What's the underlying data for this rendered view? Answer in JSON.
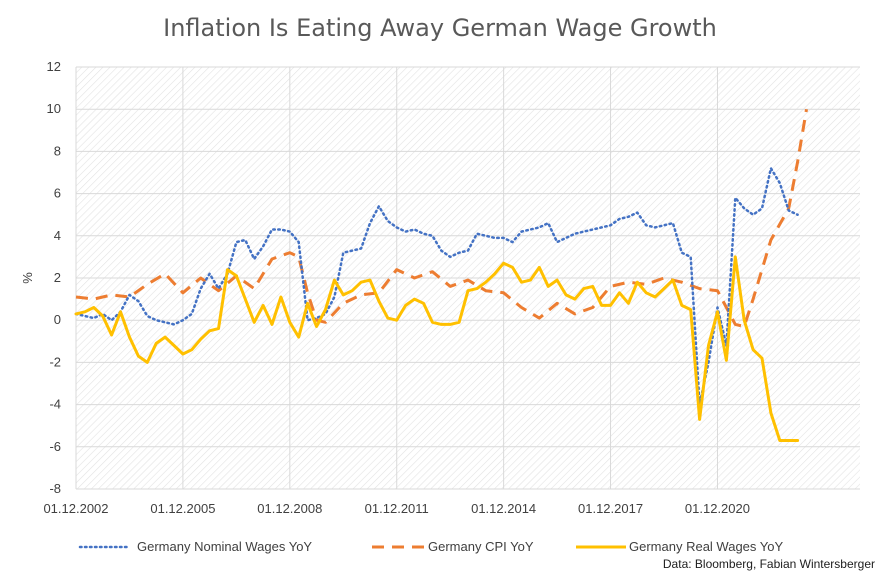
{
  "chart_data": {
    "type": "line",
    "title": "Inflation Is Eating Away German Wage Growth",
    "ylabel": "%",
    "xlabel": "",
    "ylim": [
      -8,
      12
    ],
    "yticks": [
      12,
      10,
      8,
      6,
      4,
      2,
      0,
      -2,
      -4,
      -6,
      -8
    ],
    "x_tick_labels": [
      "01.12.2002",
      "01.12.2005",
      "01.12.2008",
      "01.12.2011",
      "01.12.2014",
      "01.12.2017",
      "01.12.2020"
    ],
    "x_tick_years": [
      2002,
      2005,
      2008,
      2011,
      2014,
      2017,
      2020
    ],
    "xlim": [
      2002.0,
      2024.0
    ],
    "grid": true,
    "legend_position": "bottom",
    "source": "Data: Bloomberg, Fabian Wintersberger",
    "colors": {
      "nominal": "#4472C4",
      "cpi": "#ED7D31",
      "real": "#FFC000",
      "grid": "#d9d9d9",
      "text": "#404040"
    },
    "series": [
      {
        "name": "Germany Nominal Wages YoY",
        "style": "dotted",
        "x": [
          2002.0,
          2002.25,
          2002.5,
          2002.75,
          2003.0,
          2003.25,
          2003.5,
          2003.75,
          2004.0,
          2004.25,
          2004.5,
          2004.75,
          2005.0,
          2005.25,
          2005.5,
          2005.75,
          2006.0,
          2006.25,
          2006.5,
          2006.75,
          2007.0,
          2007.25,
          2007.5,
          2007.75,
          2008.0,
          2008.25,
          2008.5,
          2008.75,
          2009.0,
          2009.25,
          2009.5,
          2009.75,
          2010.0,
          2010.25,
          2010.5,
          2010.75,
          2011.0,
          2011.25,
          2011.5,
          2011.75,
          2012.0,
          2012.25,
          2012.5,
          2012.75,
          2013.0,
          2013.25,
          2013.5,
          2013.75,
          2014.0,
          2014.25,
          2014.5,
          2014.75,
          2015.0,
          2015.25,
          2015.5,
          2015.75,
          2016.0,
          2016.25,
          2016.5,
          2016.75,
          2017.0,
          2017.25,
          2017.5,
          2017.75,
          2018.0,
          2018.25,
          2018.5,
          2018.75,
          2019.0,
          2019.25,
          2019.5,
          2019.75,
          2020.0,
          2020.25,
          2020.5,
          2020.75,
          2021.0,
          2021.25,
          2021.5,
          2021.75,
          2022.0,
          2022.25
        ],
        "y": [
          0.3,
          0.2,
          0.1,
          0.3,
          0.0,
          0.4,
          1.2,
          0.9,
          0.2,
          0.0,
          -0.1,
          -0.2,
          0.0,
          0.3,
          1.5,
          2.2,
          1.5,
          2.2,
          3.7,
          3.8,
          2.9,
          3.5,
          4.3,
          4.3,
          4.2,
          3.7,
          0.0,
          0.1,
          0.3,
          1.1,
          3.2,
          3.3,
          3.4,
          4.6,
          5.4,
          4.7,
          4.4,
          4.2,
          4.3,
          4.1,
          4.0,
          3.3,
          3.0,
          3.2,
          3.3,
          4.1,
          4.0,
          3.9,
          3.9,
          3.7,
          4.2,
          4.3,
          4.4,
          4.6,
          3.7,
          3.9,
          4.1,
          4.2,
          4.3,
          4.4,
          4.5,
          4.8,
          4.9,
          5.1,
          4.5,
          4.4,
          4.5,
          4.6,
          3.2,
          3.0,
          -4.0,
          -2.0,
          0.6,
          -1.2,
          5.8,
          5.3,
          5.0,
          5.3,
          7.2,
          6.5,
          5.2,
          5.0
        ]
      },
      {
        "name": "Germany CPI YoY",
        "style": "dashed",
        "x": [
          2002.0,
          2002.5,
          2003.0,
          2003.5,
          2004.0,
          2004.5,
          2005.0,
          2005.5,
          2006.0,
          2006.5,
          2007.0,
          2007.5,
          2008.0,
          2008.25,
          2008.5,
          2008.75,
          2009.0,
          2009.5,
          2010.0,
          2010.5,
          2011.0,
          2011.5,
          2012.0,
          2012.5,
          2013.0,
          2013.5,
          2014.0,
          2014.5,
          2015.0,
          2015.5,
          2016.0,
          2016.5,
          2017.0,
          2017.5,
          2018.0,
          2018.5,
          2019.0,
          2019.5,
          2020.0,
          2020.25,
          2020.5,
          2020.75,
          2021.0,
          2021.5,
          2022.0,
          2022.25,
          2022.5
        ],
        "y": [
          1.1,
          1.0,
          1.2,
          1.1,
          1.7,
          2.2,
          1.3,
          2.0,
          1.4,
          2.1,
          1.5,
          2.9,
          3.2,
          3.0,
          1.3,
          0.0,
          -0.1,
          0.8,
          1.2,
          1.3,
          2.4,
          2.0,
          2.3,
          1.6,
          1.9,
          1.4,
          1.3,
          0.6,
          0.1,
          0.8,
          0.3,
          0.6,
          1.6,
          1.8,
          1.7,
          2.0,
          1.8,
          1.5,
          1.4,
          0.6,
          -0.2,
          -0.3,
          1.0,
          3.8,
          5.3,
          7.5,
          10.0
        ]
      },
      {
        "name": "Germany Real Wages YoY",
        "style": "solid",
        "x": [
          2002.0,
          2002.25,
          2002.5,
          2002.75,
          2003.0,
          2003.25,
          2003.5,
          2003.75,
          2004.0,
          2004.25,
          2004.5,
          2004.75,
          2005.0,
          2005.25,
          2005.5,
          2005.75,
          2006.0,
          2006.25,
          2006.5,
          2006.75,
          2007.0,
          2007.25,
          2007.5,
          2007.75,
          2008.0,
          2008.25,
          2008.5,
          2008.75,
          2009.0,
          2009.25,
          2009.5,
          2009.75,
          2010.0,
          2010.25,
          2010.5,
          2010.75,
          2011.0,
          2011.25,
          2011.5,
          2011.75,
          2012.0,
          2012.25,
          2012.5,
          2012.75,
          2013.0,
          2013.25,
          2013.5,
          2013.75,
          2014.0,
          2014.25,
          2014.5,
          2014.75,
          2015.0,
          2015.25,
          2015.5,
          2015.75,
          2016.0,
          2016.25,
          2016.5,
          2016.75,
          2017.0,
          2017.25,
          2017.5,
          2017.75,
          2018.0,
          2018.25,
          2018.5,
          2018.75,
          2019.0,
          2019.25,
          2019.5,
          2019.75,
          2020.0,
          2020.25,
          2020.5,
          2020.75,
          2021.0,
          2021.25,
          2021.5,
          2021.75,
          2022.0,
          2022.25
        ],
        "y": [
          0.3,
          0.4,
          0.6,
          0.2,
          -0.7,
          0.4,
          -0.8,
          -1.7,
          -2.0,
          -1.1,
          -0.8,
          -1.2,
          -1.6,
          -1.4,
          -0.9,
          -0.5,
          -0.4,
          2.4,
          2.1,
          1.0,
          -0.1,
          0.7,
          -0.2,
          1.1,
          -0.1,
          -0.8,
          0.8,
          -0.3,
          0.5,
          1.9,
          1.2,
          1.4,
          1.8,
          1.9,
          0.9,
          0.1,
          0.0,
          0.7,
          1.0,
          0.8,
          -0.1,
          -0.2,
          -0.2,
          -0.1,
          1.4,
          1.5,
          1.8,
          2.2,
          2.7,
          2.5,
          1.8,
          1.9,
          2.5,
          1.6,
          1.9,
          1.2,
          1.0,
          1.5,
          1.6,
          0.7,
          0.7,
          1.3,
          0.8,
          1.8,
          1.3,
          1.1,
          1.5,
          1.9,
          0.7,
          0.5,
          -4.7,
          -1.2,
          0.4,
          -1.9,
          3.0,
          0.0,
          -1.4,
          -1.8,
          -4.4,
          -5.7,
          -5.7,
          -5.7
        ]
      }
    ]
  }
}
